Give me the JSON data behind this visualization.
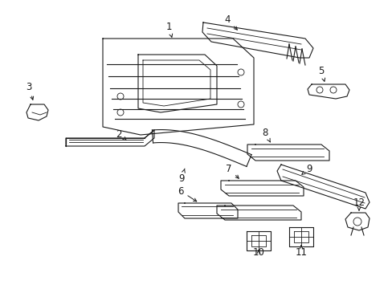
{
  "background_color": "#ffffff",
  "figure_width": 4.89,
  "figure_height": 3.6,
  "dpi": 100,
  "line_color": "#1a1a1a",
  "text_color": "#1a1a1a",
  "label_fontsize": 8.5
}
